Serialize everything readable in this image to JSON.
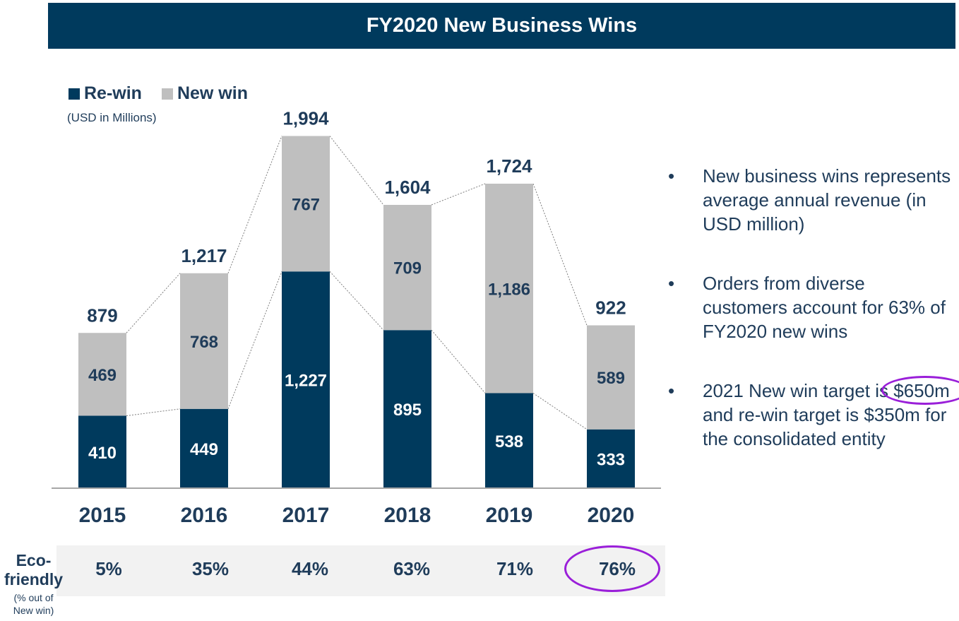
{
  "header": {
    "title": "FY2020 New Business Wins"
  },
  "legend": {
    "rewin_label": "Re-win",
    "newwin_label": "New win",
    "units": "(USD in Millions)"
  },
  "colors": {
    "rewin": "#003a5d",
    "newwin": "#bfbfbf",
    "title_bg": "#003a5d",
    "text": "#1f3c5a",
    "highlight": "#9a1fd9"
  },
  "chart_data": {
    "type": "bar",
    "stacked": true,
    "title": "FY2020 New Business Wins",
    "ylabel": "USD in Millions",
    "xlabel": "",
    "categories": [
      "2015",
      "2016",
      "2017",
      "2018",
      "2019",
      "2020"
    ],
    "series": [
      {
        "name": "Re-win",
        "values": [
          410,
          449,
          1227,
          895,
          538,
          333
        ]
      },
      {
        "name": "New win",
        "values": [
          469,
          768,
          767,
          709,
          1186,
          589
        ]
      }
    ],
    "totals": [
      "879",
      "1,217",
      "1,994",
      "1,604",
      "1,724",
      "922"
    ],
    "rewin_labels": [
      "410",
      "449",
      "1,227",
      "895",
      "538",
      "333"
    ],
    "newwin_labels": [
      "469",
      "768",
      "767",
      "709",
      "1,186",
      "589"
    ],
    "ylim": [
      0,
      2000
    ],
    "legend_position": "top-left"
  },
  "eco": {
    "label": "Eco-friendly",
    "label_line1": "Eco-",
    "label_line2": "friendly",
    "sub_line1": "(% out of",
    "sub_line2": "New win)",
    "values": [
      "5%",
      "35%",
      "44%",
      "63%",
      "71%",
      "76%"
    ]
  },
  "bullets": {
    "b1": "New business wins represents average annual revenue (in USD million)",
    "b2": "Orders from diverse customers account for 63% of FY2020 new wins",
    "b3_pre": "2021 New win target is ",
    "b3_highlight": "$650m",
    "b3_post": " and re-win target is $350m for the consolidated entity"
  }
}
